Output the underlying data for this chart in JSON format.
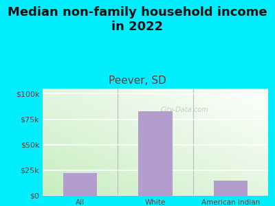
{
  "title": "Median non-family household income\nin 2022",
  "subtitle": "Peever, SD",
  "categories": [
    "All",
    "White",
    "American Indian"
  ],
  "values": [
    22000,
    83000,
    15000
  ],
  "bar_color": "#b39dcc",
  "background_outer": "#00eeff",
  "yticks": [
    0,
    25000,
    50000,
    75000,
    100000
  ],
  "ytick_labels": [
    "$0",
    "$25k",
    "$50k",
    "$75k",
    "$100k"
  ],
  "ylim": [
    0,
    105000
  ],
  "title_fontsize": 13,
  "subtitle_fontsize": 11,
  "subtitle_color": "#7a3333",
  "title_color": "#111111",
  "tick_color": "#7a3333",
  "watermark": "City-Data.com",
  "grad_color_bottom_left": "#c8edc0",
  "grad_color_top_right": "#eafaff"
}
